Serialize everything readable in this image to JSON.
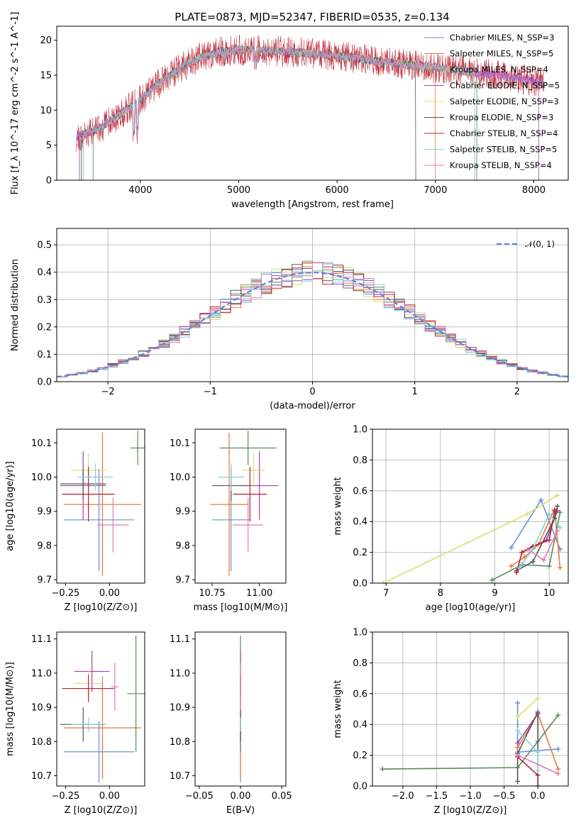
{
  "title": "PLATE=0873, MJD=52347, FIBERID=0535, z=0.134",
  "palette": [
    "#6a8fd8",
    "#e8773a",
    "#5a8a5a",
    "#a040b0",
    "#d8e06a",
    "#555555",
    "#b82030",
    "#7ed4e0",
    "#e07ab8"
  ],
  "chart_data": [
    {
      "id": "spectrum",
      "type": "line",
      "xlabel": "wavelength [Angstrom, rest frame]",
      "ylabel": "Flux [f_λ 10^-17 erg cm^-2 s^-1 A^-1]",
      "xlim": [
        3150,
        8350
      ],
      "ylim": [
        0,
        22
      ],
      "xticks": [
        4000,
        5000,
        6000,
        7000,
        8000
      ],
      "yticks": [
        0,
        5,
        10,
        15,
        20
      ],
      "grid": false,
      "legend": [
        "Chabrier MILES, N_SSP=3",
        "Salpeter MILES, N_SSP=5",
        "Kroupa MILES, N_SSP=4",
        "Chabrier ELODIE, N_SSP=5",
        "Salpeter ELODIE, N_SSP=3",
        "Kroupa ELODIE, N_SSP=3",
        "Chabrier STELIB, N_SSP=4",
        "Salpeter STELIB, N_SSP=5",
        "Kroupa STELIB, N_SSP=4"
      ],
      "continuum_x": [
        3350,
        3600,
        3800,
        4000,
        4200,
        4400,
        4600,
        4800,
        5000,
        5200,
        5400,
        5600,
        5800,
        6000,
        6200,
        6400,
        6600,
        6800,
        7000,
        7200,
        7400,
        7600,
        7800,
        8000,
        8100
      ],
      "continuum_y": [
        6.2,
        7.5,
        9.5,
        11.5,
        14.0,
        16.0,
        17.5,
        18.3,
        18.6,
        18.6,
        18.4,
        18.3,
        18.0,
        17.8,
        17.4,
        17.0,
        16.7,
        16.4,
        16.1,
        15.8,
        15.3,
        15.1,
        14.6,
        14.2,
        14.0
      ]
    },
    {
      "id": "residuals",
      "type": "area",
      "xlabel": "(data-model)/error",
      "ylabel": "Normed distribution",
      "xlim": [
        -2.5,
        2.5
      ],
      "ylim": [
        0,
        0.56
      ],
      "xticks": [
        -2,
        -1,
        0,
        1,
        2
      ],
      "yticks": [
        0.0,
        0.1,
        0.2,
        0.3,
        0.4,
        0.5
      ],
      "grid": true,
      "legend": [
        "𝒩(0, 1)"
      ],
      "legend_position": "top-right"
    },
    {
      "id": "age-vs-Z",
      "type": "scatter",
      "xlabel": "Z [log10(Z/Z⊙)]",
      "ylabel": "age [log10(age/yr)]",
      "xlim": [
        -0.3,
        0.2
      ],
      "ylim": [
        9.69,
        10.14
      ],
      "xticks": [
        -0.25,
        0.0
      ],
      "yticks": [
        9.7,
        9.8,
        9.9,
        10.0,
        10.1
      ],
      "points": [
        {
          "x": -0.06,
          "xerr": 0.2,
          "y": 9.875,
          "yerr": 0.15
        },
        {
          "x": -0.04,
          "xerr": 0.22,
          "y": 9.92,
          "yerr": 0.21
        },
        {
          "x": 0.16,
          "xerr": 0.04,
          "y": 10.085,
          "yerr": 0.05
        },
        {
          "x": -0.15,
          "xerr": 0.13,
          "y": 9.975,
          "yerr": 0.1
        },
        {
          "x": -0.12,
          "xerr": 0.1,
          "y": 10.02,
          "yerr": 0.05
        },
        {
          "x": -0.15,
          "xerr": 0.13,
          "y": 9.98,
          "yerr": 0.045
        },
        {
          "x": -0.12,
          "xerr": 0.15,
          "y": 9.95,
          "yerr": 0.08
        },
        {
          "x": -0.08,
          "xerr": 0.1,
          "y": 10.0,
          "yerr": 0.04
        },
        {
          "x": 0.02,
          "xerr": 0.09,
          "y": 9.86,
          "yerr": 0.08
        }
      ]
    },
    {
      "id": "age-vs-mass",
      "type": "scatter",
      "xlabel": "mass [log10(M/M⊙)]",
      "ylabel": "",
      "xlim": [
        10.66,
        11.14
      ],
      "ylim": [
        9.69,
        10.14
      ],
      "xticks": [
        10.75,
        11.0
      ],
      "yticks": [
        9.7,
        9.8,
        9.9,
        10.0,
        10.1
      ],
      "points": [
        {
          "x": 10.85,
          "xerr": 0.1,
          "y": 9.875,
          "yerr": 0.15
        },
        {
          "x": 10.84,
          "xerr": 0.1,
          "y": 9.92,
          "yerr": 0.21
        },
        {
          "x": 10.94,
          "xerr": 0.15,
          "y": 10.085,
          "yerr": 0.05
        },
        {
          "x": 11.0,
          "xerr": 0.1,
          "y": 9.975,
          "yerr": 0.1
        },
        {
          "x": 10.97,
          "xerr": 0.06,
          "y": 10.02,
          "yerr": 0.05
        },
        {
          "x": 10.85,
          "xerr": 0.1,
          "y": 9.975,
          "yerr": 0.045
        },
        {
          "x": 10.95,
          "xerr": 0.09,
          "y": 9.95,
          "yerr": 0.08
        },
        {
          "x": 10.85,
          "xerr": 0.07,
          "y": 10.0,
          "yerr": 0.04
        },
        {
          "x": 10.94,
          "xerr": 0.08,
          "y": 9.86,
          "yerr": 0.08
        }
      ]
    },
    {
      "id": "weight-vs-age",
      "type": "line",
      "xlabel": "age [log10(age/yr)]",
      "ylabel": "mass weight",
      "xlim": [
        6.75,
        10.35
      ],
      "ylim": [
        0,
        1.0
      ],
      "xticks": [
        7,
        8,
        9,
        10
      ],
      "yticks": [
        0.0,
        0.2,
        0.4,
        0.6,
        0.8,
        1.0
      ],
      "grid": true,
      "series": [
        {
          "x": [
            9.3,
            9.85,
            10.2
          ],
          "y": [
            0.23,
            0.54,
            0.22
          ]
        },
        {
          "x": [
            9.3,
            9.55,
            9.8,
            10.1,
            10.2
          ],
          "y": [
            0.11,
            0.17,
            0.25,
            0.48,
            0.1
          ]
        },
        {
          "x": [
            8.95,
            9.5,
            10.0,
            10.2
          ],
          "y": [
            0.02,
            0.12,
            0.11,
            0.46
          ]
        },
        {
          "x": [
            9.5,
            9.95,
            10.15
          ],
          "y": [
            0.2,
            0.28,
            0.47
          ]
        },
        {
          "x": [
            6.95,
            9.6,
            10.15
          ],
          "y": [
            0.0,
            0.45,
            0.57
          ]
        },
        {
          "x": [
            9.4,
            9.7,
            10.1,
            10.15
          ],
          "y": [
            0.08,
            0.14,
            0.42,
            0.5
          ]
        },
        {
          "x": [
            9.4,
            9.5,
            9.7,
            10.0,
            10.1
          ],
          "y": [
            0.07,
            0.2,
            0.24,
            0.28,
            0.47
          ]
        },
        {
          "x": [
            9.45,
            9.7,
            10.0,
            10.2
          ],
          "y": [
            0.1,
            0.22,
            0.45,
            0.36
          ]
        },
        {
          "x": [
            9.6,
            9.9,
            10.15
          ],
          "y": [
            0.22,
            0.15,
            0.34
          ]
        }
      ]
    },
    {
      "id": "mass-vs-Z",
      "type": "scatter",
      "xlabel": "Z [log10(Z/Z⊙)]",
      "ylabel": "mass [log10(M/M⊙)]",
      "xlim": [
        -0.3,
        0.2
      ],
      "ylim": [
        10.67,
        11.12
      ],
      "xticks": [
        -0.25,
        0.0
      ],
      "yticks": [
        10.7,
        10.8,
        10.9,
        11.0,
        11.1
      ],
      "points": [
        {
          "x": -0.06,
          "xerr": 0.2,
          "y": 10.77,
          "yerr": 0.09
        },
        {
          "x": -0.04,
          "xerr": 0.22,
          "y": 10.84,
          "yerr": 0.15
        },
        {
          "x": 0.15,
          "xerr": 0.05,
          "y": 10.94,
          "yerr": 0.17
        },
        {
          "x": -0.1,
          "xerr": 0.1,
          "y": 11.005,
          "yerr": 0.06
        },
        {
          "x": -0.12,
          "xerr": 0.08,
          "y": 10.97,
          "yerr": 0.04
        },
        {
          "x": -0.15,
          "xerr": 0.13,
          "y": 10.85,
          "yerr": 0.05
        },
        {
          "x": -0.12,
          "xerr": 0.15,
          "y": 10.955,
          "yerr": 0.04
        },
        {
          "x": -0.12,
          "xerr": 0.1,
          "y": 10.85,
          "yerr": 0.02
        },
        {
          "x": 0.03,
          "xerr": 0.02,
          "y": 10.96,
          "yerr": 0.07
        }
      ]
    },
    {
      "id": "mass-vs-ebv",
      "type": "scatter",
      "xlabel": "E(B-V)",
      "ylabel": "",
      "xlim": [
        -0.055,
        0.055
      ],
      "ylim": [
        10.67,
        11.12
      ],
      "xticks": [
        -0.05,
        0.0,
        0.05
      ],
      "yticks": [
        10.7,
        10.8,
        10.9,
        11.0,
        11.1
      ],
      "points": [
        {
          "x": 0.0,
          "xerr": 0.0,
          "y": 10.77,
          "yerr": 0.09
        },
        {
          "x": 0.0,
          "xerr": 0.0,
          "y": 10.84,
          "yerr": 0.15
        },
        {
          "x": 0.0,
          "xerr": 0.0,
          "y": 10.94,
          "yerr": 0.17
        },
        {
          "x": 0.0,
          "xerr": 0.0,
          "y": 11.005,
          "yerr": 0.06
        },
        {
          "x": 0.0,
          "xerr": 0.0,
          "y": 10.97,
          "yerr": 0.04
        },
        {
          "x": 0.0,
          "xerr": 0.0,
          "y": 10.85,
          "yerr": 0.05
        },
        {
          "x": 0.0,
          "xerr": 0.0,
          "y": 10.955,
          "yerr": 0.04
        },
        {
          "x": 0.0,
          "xerr": 0.0,
          "y": 10.85,
          "yerr": 0.02
        },
        {
          "x": 0.0,
          "xerr": 0.0,
          "y": 10.96,
          "yerr": 0.07
        }
      ]
    },
    {
      "id": "weight-vs-Z",
      "type": "line",
      "xlabel": "Z [log10(Z/Z⊙)]",
      "ylabel": "mass weight",
      "xlim": [
        -2.45,
        0.45
      ],
      "ylim": [
        0,
        1.0
      ],
      "xticks": [
        -2.0,
        -1.5,
        -1.0,
        -0.5,
        0.0
      ],
      "yticks": [
        0.0,
        0.2,
        0.4,
        0.6,
        0.8,
        1.0
      ],
      "grid": true,
      "series": [
        {
          "x": [
            -0.3,
            -0.3,
            0.3
          ],
          "y": [
            0.54,
            0.22,
            0.24
          ]
        },
        {
          "x": [
            -0.3,
            0.0,
            0.3
          ],
          "y": [
            0.25,
            0.47,
            0.11
          ]
        },
        {
          "x": [
            -2.3,
            -0.3,
            0.0,
            0.3
          ],
          "y": [
            0.11,
            0.12,
            0.29,
            0.46
          ]
        },
        {
          "x": [
            -0.3,
            0.0
          ],
          "y": [
            0.28,
            0.47
          ]
        },
        {
          "x": [
            -0.3,
            0.0
          ],
          "y": [
            0.45,
            0.57
          ]
        },
        {
          "x": [
            -0.3,
            -0.3,
            0.0,
            0.0
          ],
          "y": [
            0.03,
            0.21,
            0.48,
            0.0
          ]
        },
        {
          "x": [
            -0.3,
            0.0,
            0.0
          ],
          "y": [
            0.19,
            0.07,
            0.0
          ]
        },
        {
          "x": [
            -0.3,
            0.0,
            0.0
          ],
          "y": [
            0.36,
            0.22,
            0.1
          ]
        },
        {
          "x": [
            -0.3,
            0.3
          ],
          "y": [
            0.2,
            0.08
          ]
        }
      ]
    }
  ]
}
